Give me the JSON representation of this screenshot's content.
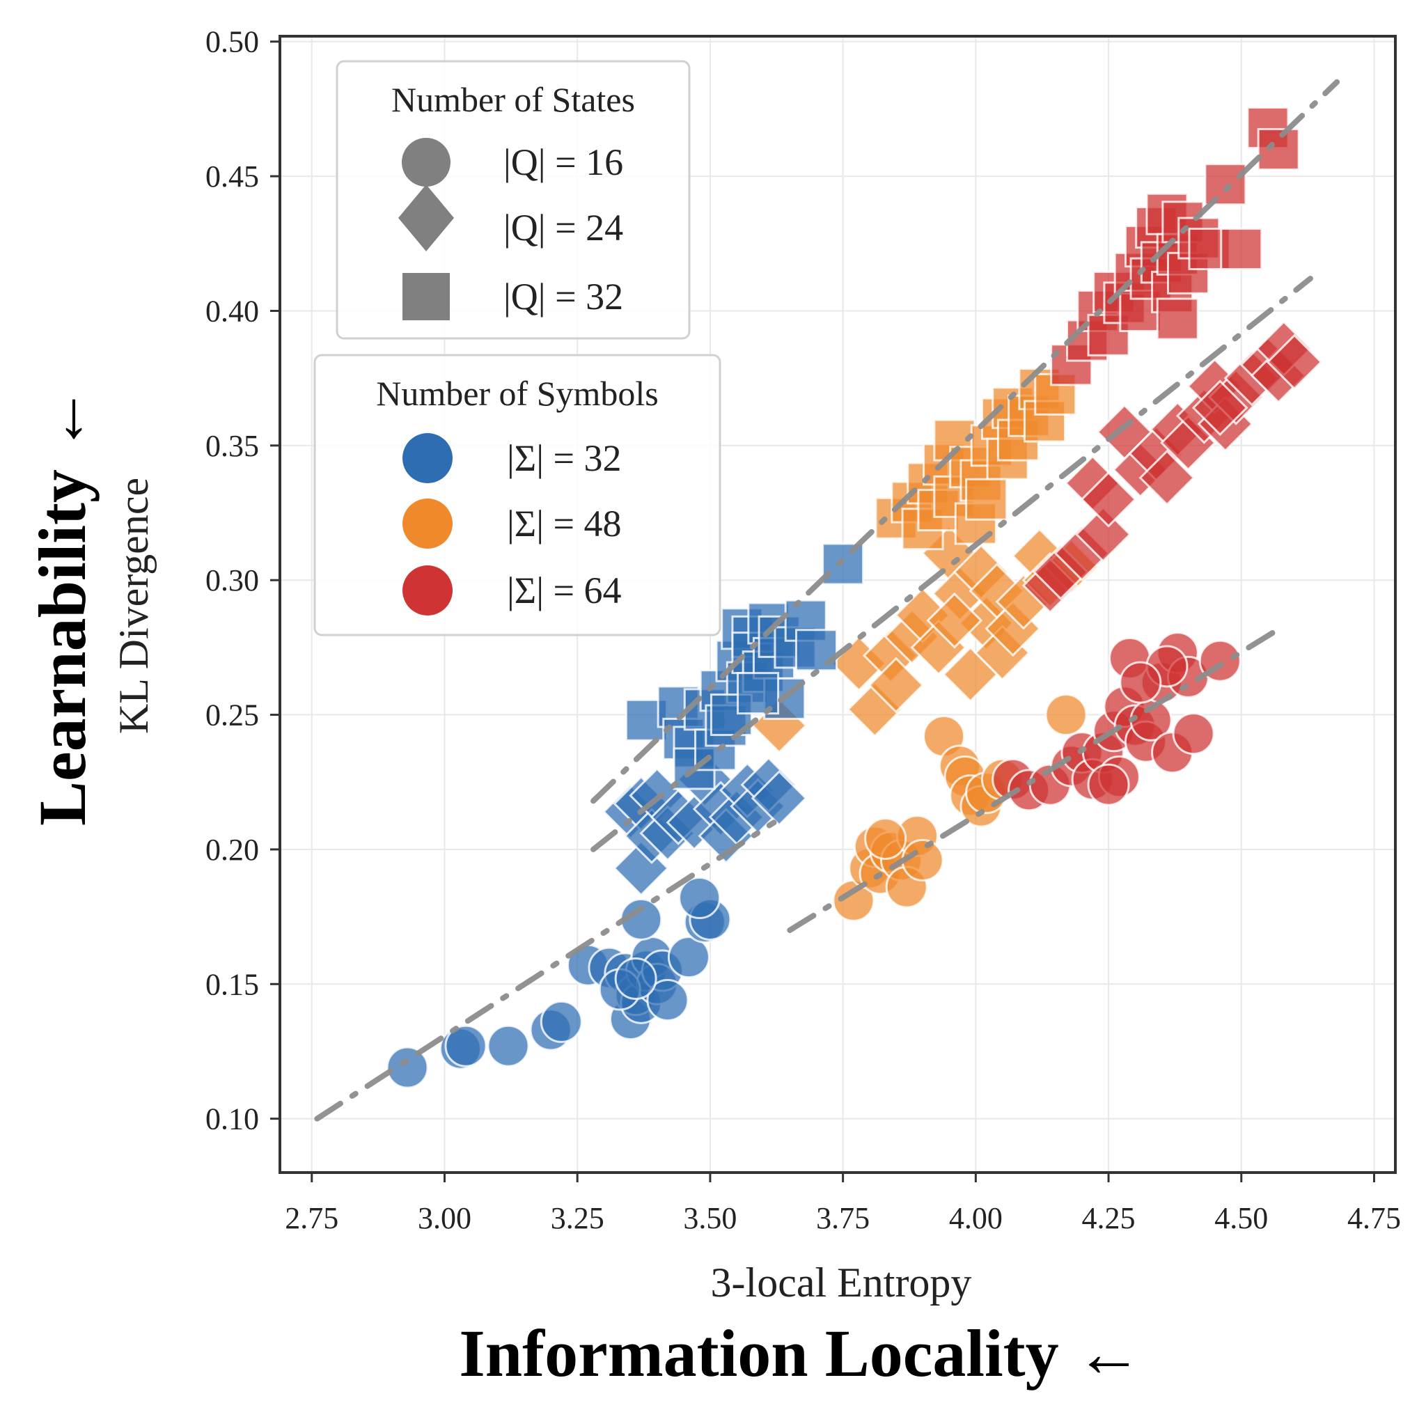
{
  "colors": {
    "sigma_32": "#2f6db3",
    "sigma_48": "#f0892c",
    "sigma_64": "#cf3333",
    "legend_marker": "#808080",
    "trend": "#8c8c8c",
    "grid": "#e8e8e8",
    "axes": "#333333"
  },
  "chart_data": {
    "type": "scatter",
    "xlabel": "3-local Entropy",
    "ylabel": "KL Divergence",
    "outer_xlabel": "Information Locality ←",
    "outer_ylabel": "Learnability ←",
    "xlim": [
      2.69,
      4.79
    ],
    "ylim": [
      0.08,
      0.502
    ],
    "grid": true,
    "xticks": [
      2.75,
      3.0,
      3.25,
      3.5,
      3.75,
      4.0,
      4.25,
      4.5,
      4.75
    ],
    "xtick_labels": [
      "2.75",
      "3.00",
      "3.25",
      "3.50",
      "3.75",
      "4.00",
      "4.25",
      "4.50",
      "4.75"
    ],
    "yticks": [
      0.1,
      0.15,
      0.2,
      0.25,
      0.3,
      0.35,
      0.4,
      0.45,
      0.5
    ],
    "ytick_labels": [
      "0.10",
      "0.15",
      "0.20",
      "0.25",
      "0.30",
      "0.35",
      "0.40",
      "0.45",
      "0.50"
    ],
    "legends": [
      {
        "title": "Number of States",
        "placement": "top-left",
        "entries": [
          {
            "marker": "circle",
            "label": "|Q| = 16"
          },
          {
            "marker": "diamond",
            "label": "|Q| = 24"
          },
          {
            "marker": "square",
            "label": "|Q| = 32"
          }
        ]
      },
      {
        "title": "Number of Symbols",
        "placement": "upper-left",
        "entries": [
          {
            "color_key": "sigma_32",
            "label": "|Σ| = 32"
          },
          {
            "color_key": "sigma_48",
            "label": "|Σ| = 48"
          },
          {
            "color_key": "sigma_64",
            "label": "|Σ| = 64"
          }
        ]
      }
    ],
    "trend_lines": [
      {
        "states": 16,
        "x": [
          2.76,
          3.62
        ],
        "y": [
          0.1,
          0.21
        ]
      },
      {
        "states": 16,
        "x": [
          3.65,
          4.58
        ],
        "y": [
          0.17,
          0.283
        ]
      },
      {
        "states": 24,
        "x": [
          3.28,
          4.63
        ],
        "y": [
          0.2,
          0.412
        ]
      },
      {
        "states": 32,
        "x": [
          3.28,
          4.68
        ],
        "y": [
          0.218,
          0.485
        ]
      }
    ],
    "series": [
      {
        "states": 16,
        "symbols": 32,
        "marker": "circle",
        "color_key": "sigma_32",
        "points": [
          [
            2.93,
            0.119
          ],
          [
            3.03,
            0.126
          ],
          [
            3.04,
            0.127
          ],
          [
            3.12,
            0.127
          ],
          [
            3.2,
            0.133
          ],
          [
            3.22,
            0.136
          ],
          [
            3.27,
            0.157
          ],
          [
            3.31,
            0.156
          ],
          [
            3.34,
            0.154
          ],
          [
            3.35,
            0.137
          ],
          [
            3.36,
            0.146
          ],
          [
            3.37,
            0.143
          ],
          [
            3.38,
            0.155
          ],
          [
            3.39,
            0.16
          ],
          [
            3.4,
            0.15
          ],
          [
            3.41,
            0.155
          ],
          [
            3.42,
            0.144
          ],
          [
            3.46,
            0.16
          ],
          [
            3.37,
            0.174
          ],
          [
            3.49,
            0.173
          ],
          [
            3.5,
            0.174
          ],
          [
            3.48,
            0.182
          ],
          [
            3.33,
            0.148
          ],
          [
            3.36,
            0.152
          ]
        ]
      },
      {
        "states": 16,
        "symbols": 48,
        "marker": "circle",
        "color_key": "sigma_48",
        "points": [
          [
            3.77,
            0.181
          ],
          [
            3.8,
            0.193
          ],
          [
            3.81,
            0.201
          ],
          [
            3.82,
            0.191
          ],
          [
            3.84,
            0.199
          ],
          [
            3.86,
            0.196
          ],
          [
            3.87,
            0.186
          ],
          [
            3.89,
            0.205
          ],
          [
            3.9,
            0.196
          ],
          [
            3.94,
            0.242
          ],
          [
            3.97,
            0.231
          ],
          [
            3.98,
            0.227
          ],
          [
            3.99,
            0.22
          ],
          [
            4.01,
            0.216
          ],
          [
            4.02,
            0.221
          ],
          [
            4.05,
            0.226
          ],
          [
            4.17,
            0.25
          ],
          [
            3.83,
            0.204
          ]
        ]
      },
      {
        "states": 16,
        "symbols": 64,
        "marker": "circle",
        "color_key": "sigma_64",
        "points": [
          [
            4.07,
            0.226
          ],
          [
            4.1,
            0.222
          ],
          [
            4.14,
            0.224
          ],
          [
            4.18,
            0.231
          ],
          [
            4.2,
            0.236
          ],
          [
            4.22,
            0.226
          ],
          [
            4.24,
            0.236
          ],
          [
            4.26,
            0.244
          ],
          [
            4.27,
            0.227
          ],
          [
            4.28,
            0.253
          ],
          [
            4.29,
            0.271
          ],
          [
            4.3,
            0.246
          ],
          [
            4.32,
            0.24
          ],
          [
            4.33,
            0.248
          ],
          [
            4.35,
            0.262
          ],
          [
            4.37,
            0.236
          ],
          [
            4.38,
            0.273
          ],
          [
            4.4,
            0.264
          ],
          [
            4.41,
            0.243
          ],
          [
            4.46,
            0.27
          ],
          [
            4.36,
            0.268
          ],
          [
            4.25,
            0.224
          ],
          [
            4.31,
            0.262
          ]
        ]
      },
      {
        "states": 24,
        "symbols": 32,
        "marker": "diamond",
        "color_key": "sigma_32",
        "points": [
          [
            3.37,
            0.193
          ],
          [
            3.35,
            0.214
          ],
          [
            3.37,
            0.217
          ],
          [
            3.39,
            0.205
          ],
          [
            3.4,
            0.22
          ],
          [
            3.42,
            0.206
          ],
          [
            3.44,
            0.212
          ],
          [
            3.47,
            0.21
          ],
          [
            3.49,
            0.226
          ],
          [
            3.52,
            0.215
          ],
          [
            3.53,
            0.205
          ],
          [
            3.55,
            0.212
          ],
          [
            3.57,
            0.222
          ],
          [
            3.59,
            0.216
          ],
          [
            3.61,
            0.224
          ],
          [
            3.63,
            0.219
          ]
        ]
      },
      {
        "states": 24,
        "symbols": 48,
        "marker": "diamond",
        "color_key": "sigma_48",
        "points": [
          [
            3.63,
            0.246
          ],
          [
            3.78,
            0.269
          ],
          [
            3.81,
            0.252
          ],
          [
            3.84,
            0.272
          ],
          [
            3.85,
            0.261
          ],
          [
            3.88,
            0.279
          ],
          [
            3.9,
            0.287
          ],
          [
            3.93,
            0.275
          ],
          [
            3.95,
            0.31
          ],
          [
            3.97,
            0.295
          ],
          [
            3.99,
            0.265
          ],
          [
            4.01,
            0.303
          ],
          [
            4.02,
            0.284
          ],
          [
            4.04,
            0.296
          ],
          [
            4.05,
            0.273
          ],
          [
            4.07,
            0.282
          ],
          [
            4.09,
            0.292
          ],
          [
            4.12,
            0.309
          ],
          [
            4.14,
            0.3
          ],
          [
            4.18,
            0.305
          ],
          [
            3.96,
            0.285
          ]
        ]
      },
      {
        "states": 24,
        "symbols": 64,
        "marker": "diamond",
        "color_key": "sigma_64",
        "points": [
          [
            4.14,
            0.298
          ],
          [
            4.16,
            0.303
          ],
          [
            4.2,
            0.31
          ],
          [
            4.22,
            0.336
          ],
          [
            4.24,
            0.317
          ],
          [
            4.25,
            0.33
          ],
          [
            4.28,
            0.355
          ],
          [
            4.31,
            0.341
          ],
          [
            4.34,
            0.347
          ],
          [
            4.36,
            0.338
          ],
          [
            4.38,
            0.356
          ],
          [
            4.4,
            0.351
          ],
          [
            4.43,
            0.361
          ],
          [
            4.45,
            0.372
          ],
          [
            4.47,
            0.358
          ],
          [
            4.49,
            0.368
          ],
          [
            4.52,
            0.375
          ],
          [
            4.55,
            0.38
          ],
          [
            4.57,
            0.376
          ],
          [
            4.58,
            0.386
          ],
          [
            4.6,
            0.381
          ],
          [
            4.46,
            0.364
          ]
        ]
      },
      {
        "states": 32,
        "symbols": 32,
        "marker": "square",
        "color_key": "sigma_32",
        "points": [
          [
            3.38,
            0.248
          ],
          [
            3.44,
            0.253
          ],
          [
            3.45,
            0.241
          ],
          [
            3.47,
            0.238
          ],
          [
            3.47,
            0.23
          ],
          [
            3.49,
            0.252
          ],
          [
            3.51,
            0.237
          ],
          [
            3.52,
            0.259
          ],
          [
            3.53,
            0.246
          ],
          [
            3.55,
            0.27
          ],
          [
            3.56,
            0.282
          ],
          [
            3.57,
            0.262
          ],
          [
            3.58,
            0.279
          ],
          [
            3.58,
            0.273
          ],
          [
            3.6,
            0.266
          ],
          [
            3.61,
            0.284
          ],
          [
            3.62,
            0.271
          ],
          [
            3.63,
            0.279
          ],
          [
            3.64,
            0.256
          ],
          [
            3.66,
            0.275
          ],
          [
            3.68,
            0.285
          ],
          [
            3.7,
            0.274
          ],
          [
            3.75,
            0.306
          ],
          [
            3.54,
            0.25
          ],
          [
            3.59,
            0.258
          ]
        ]
      },
      {
        "states": 32,
        "symbols": 48,
        "marker": "square",
        "color_key": "sigma_48",
        "points": [
          [
            3.85,
            0.323
          ],
          [
            3.88,
            0.329
          ],
          [
            3.9,
            0.319
          ],
          [
            3.91,
            0.336
          ],
          [
            3.93,
            0.326
          ],
          [
            3.94,
            0.343
          ],
          [
            3.96,
            0.352
          ],
          [
            3.96,
            0.331
          ],
          [
            3.99,
            0.342
          ],
          [
            4.0,
            0.321
          ],
          [
            4.01,
            0.337
          ],
          [
            4.03,
            0.35
          ],
          [
            4.05,
            0.36
          ],
          [
            4.06,
            0.345
          ],
          [
            4.07,
            0.364
          ],
          [
            4.08,
            0.352
          ],
          [
            4.1,
            0.361
          ],
          [
            4.12,
            0.371
          ],
          [
            4.13,
            0.359
          ],
          [
            4.15,
            0.369
          ],
          [
            4.02,
            0.33
          ]
        ]
      },
      {
        "states": 32,
        "symbols": 64,
        "marker": "square",
        "color_key": "sigma_64",
        "points": [
          [
            4.18,
            0.38
          ],
          [
            4.21,
            0.389
          ],
          [
            4.23,
            0.4
          ],
          [
            4.25,
            0.391
          ],
          [
            4.26,
            0.407
          ],
          [
            4.28,
            0.403
          ],
          [
            4.3,
            0.414
          ],
          [
            4.31,
            0.4
          ],
          [
            4.32,
            0.424
          ],
          [
            4.33,
            0.412
          ],
          [
            4.34,
            0.431
          ],
          [
            4.35,
            0.418
          ],
          [
            4.36,
            0.436
          ],
          [
            4.37,
            0.407
          ],
          [
            4.38,
            0.421
          ],
          [
            4.39,
            0.433
          ],
          [
            4.4,
            0.414
          ],
          [
            4.42,
            0.427
          ],
          [
            4.44,
            0.423
          ],
          [
            4.47,
            0.447
          ],
          [
            4.5,
            0.423
          ],
          [
            4.55,
            0.468
          ],
          [
            4.57,
            0.46
          ],
          [
            4.38,
            0.397
          ]
        ]
      }
    ]
  }
}
